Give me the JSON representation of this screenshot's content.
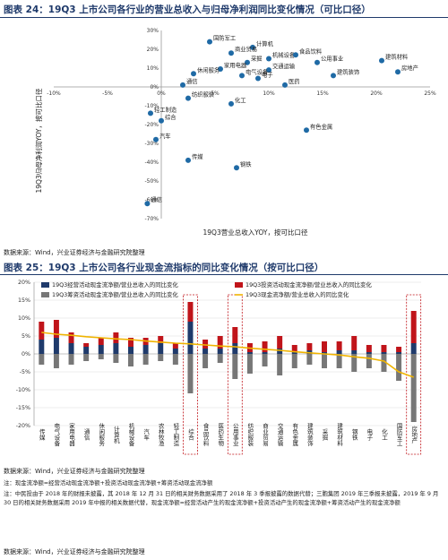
{
  "fig24": {
    "title": "图表 24：19Q3 上市公司各行业的营业总收入与归母净利润同比变化情况（可比口径）",
    "source": "数据来源：Wind，兴业证券经济与金融研究院整理",
    "xlabel": "19Q3营业总收入YOY，按可比口径",
    "ylabel": "19Q3归母净利润YOY，按可比口径"
  },
  "fig25": {
    "title": "图表 25：19Q3 上市公司各行业现金流指标的同比变化情况（按可比口径）",
    "source": "数据来源：Wind，兴业证券经济与金融研究院整理",
    "note1": "注：现金流净额=经营活动现金流净额+投资活动现金流净额+筹资活动现金流净额",
    "note2": "注：中民投由于 2018 年的财报未披露，其 2018 年 12 月 31 日的相关财务数据采用了 2018 年 3 季报披露的数据代替；三胞集团 2019 年三季报未披露，2019 年 9 月 30 日的相关财务数据采用 2019 年中报的相关数据代替，现金流净额=经营活动产生的现金流净额+投资活动产生的现金流净额+筹资活动产生的现金流净额"
  },
  "bottom_source": "数据来源：Wind，兴业证券经济与金融研究院整理",
  "chart_data": [
    {
      "type": "scatter",
      "title": "图表 24：19Q3 上市公司各行业的营业总收入与归母净利润同比变化情况（可比口径）",
      "xlabel": "19Q3营业总收入YOY，按可比口径",
      "ylabel": "19Q3归母净利润YOY，按可比口径",
      "xlim": [
        -10,
        25
      ],
      "ylim": [
        -70,
        30
      ],
      "x_ticks": [
        "-10%",
        "-5%",
        "0%",
        "5%",
        "10%",
        "15%",
        "20%",
        "25%"
      ],
      "y_ticks": [
        "30%",
        "20%",
        "10%",
        "0%",
        "-10%",
        "-20%",
        "-30%",
        "-40%",
        "-50%",
        "-60%",
        "-70%"
      ],
      "point_color": "#1f6aa5",
      "points": [
        {
          "label": "国防军工",
          "x": 4.5,
          "y": 24
        },
        {
          "label": "计算机",
          "x": 8.5,
          "y": 21
        },
        {
          "label": "商业贸易",
          "x": 6.5,
          "y": 18
        },
        {
          "label": "机械设备",
          "x": 10,
          "y": 15
        },
        {
          "label": "食品饮料",
          "x": 12.5,
          "y": 17
        },
        {
          "label": "采掘",
          "x": 8,
          "y": 13
        },
        {
          "label": "公用事业",
          "x": 14.5,
          "y": 13
        },
        {
          "label": "建筑材料",
          "x": 20.5,
          "y": 14
        },
        {
          "label": "家用电器",
          "x": 5.5,
          "y": 9.5
        },
        {
          "label": "交通运输",
          "x": 10,
          "y": 9
        },
        {
          "label": "休闲服务",
          "x": 3,
          "y": 7
        },
        {
          "label": "电气设备",
          "x": 7.5,
          "y": 6
        },
        {
          "label": "电子",
          "x": 9,
          "y": 4.5
        },
        {
          "label": "建筑装饰",
          "x": 16,
          "y": 6
        },
        {
          "label": "房地产",
          "x": 22,
          "y": 8
        },
        {
          "label": "通信",
          "x": 2,
          "y": 1
        },
        {
          "label": "医药",
          "x": 11.5,
          "y": 1
        },
        {
          "label": "纺织服装",
          "x": 2.5,
          "y": -6
        },
        {
          "label": "化工",
          "x": 6.5,
          "y": -9
        },
        {
          "label": "轻工制造",
          "x": -1,
          "y": -14
        },
        {
          "label": "综合",
          "x": 0,
          "y": -18
        },
        {
          "label": "有色金属",
          "x": 13.5,
          "y": -23
        },
        {
          "label": "汽车",
          "x": -0.5,
          "y": -28
        },
        {
          "label": "传媒",
          "x": 2.5,
          "y": -39
        },
        {
          "label": "钢铁",
          "x": 7,
          "y": -43
        },
        {
          "label": "通信",
          "x": -1.3,
          "y": -62
        }
      ]
    },
    {
      "type": "bar",
      "title": "图表 25：19Q3 上市公司各行业现金流指标的同比变化情况（按可比口径）",
      "ylim": [
        -20,
        20
      ],
      "y_ticks": [
        "20%",
        "15%",
        "10%",
        "5%",
        "0%",
        "-5%",
        "-10%",
        "-15%",
        "-20%"
      ],
      "categories": [
        "传媒",
        "电气设备",
        "家用电器",
        "通信",
        "休闲服务",
        "计算机",
        "机械设备",
        "汽车",
        "农林牧渔",
        "轻工制造",
        "综合",
        "食品饮料",
        "医药生物",
        "公用事业",
        "纺织服装",
        "商业贸易",
        "交通运输",
        "有色金属",
        "建筑装饰",
        "采掘",
        "建筑材料",
        "钢铁",
        "电子",
        "化工",
        "国防军工",
        "房地产"
      ],
      "highlighted": [
        "综合",
        "公用事业",
        "房地产"
      ],
      "series": [
        {
          "name": "19Q3经营活动现金流净额/营业总收入的同比变化",
          "color": "#1f3a6b",
          "values": [
            4,
            4.5,
            3,
            2,
            2.5,
            3,
            2,
            2.5,
            3,
            1.5,
            9,
            1.5,
            1.5,
            3,
            0.5,
            0.5,
            1.5,
            0.5,
            1,
            0.5,
            1,
            1,
            0.5,
            0.5,
            0.5,
            3
          ]
        },
        {
          "name": "19Q3投资活动现金流净额/营业总收入的同比变化",
          "color": "#c0141a",
          "values": [
            5,
            5,
            3,
            1,
            2,
            3,
            2.5,
            2,
            2,
            1.5,
            5.5,
            2.5,
            3.5,
            4.5,
            2.5,
            3,
            3.5,
            2,
            2,
            3,
            2.5,
            4,
            2,
            2,
            1.5,
            9
          ]
        },
        {
          "name": "19Q3筹资活动现金流净额/营业总收入的同比变化",
          "color": "#777777",
          "values": [
            -3,
            -4,
            -3,
            -2,
            -1.5,
            -2.5,
            -3.5,
            -3,
            -2,
            -3,
            -11,
            -4,
            -2.5,
            -7,
            -5.5,
            -3.5,
            -6,
            -4,
            -3,
            -4,
            -4,
            -5,
            -4,
            -5,
            -7.5,
            -19
          ]
        },
        {
          "name": "19Q3现金流净额/营业总收入的同比变化",
          "color": "#f0b400",
          "type": "line",
          "values": [
            6,
            5.5,
            5.2,
            4.8,
            4.5,
            4.2,
            4,
            3.6,
            3.3,
            3,
            2.8,
            2.5,
            2.2,
            2,
            1.6,
            1.3,
            1,
            0.6,
            0.3,
            0,
            -0.3,
            -0.8,
            -1.2,
            -2,
            -5,
            -6.5
          ]
        }
      ]
    }
  ]
}
